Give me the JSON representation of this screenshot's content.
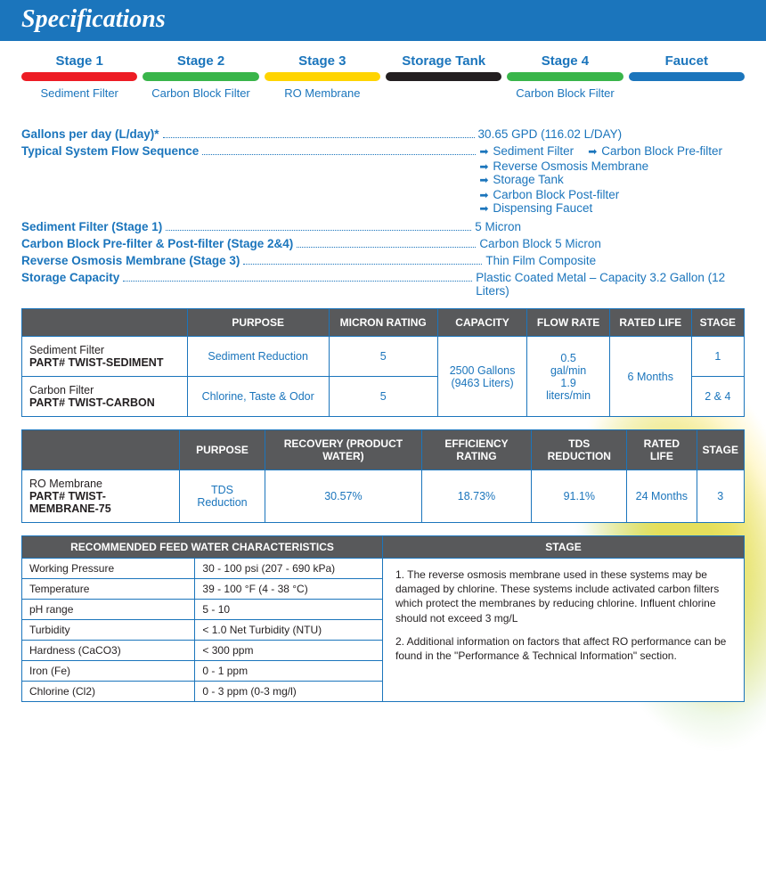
{
  "header": {
    "title": "Specifications"
  },
  "stages": [
    {
      "top": "Stage 1",
      "sub": "Sediment Filter",
      "color": "#ed1c24"
    },
    {
      "top": "Stage 2",
      "sub": "Carbon Block Filter",
      "color": "#39b54a"
    },
    {
      "top": "Stage 3",
      "sub": "RO  Membrane",
      "color": "#ffd400"
    },
    {
      "top": "Storage Tank",
      "sub": "",
      "color": "#231f20"
    },
    {
      "top": "Stage 4",
      "sub": "Carbon Block Filter",
      "color": "#39b54a"
    },
    {
      "top": "Faucet",
      "sub": "",
      "color": "#1b75bc"
    }
  ],
  "spec_rows": [
    {
      "label": "Gallons per day (L/day)*",
      "value": "30.65 GPD (116.02 L/DAY)",
      "dots_width": 350
    },
    {
      "label": "Typical System Flow Sequence",
      "value_flow": [
        [
          "Sediment Filter",
          "Carbon Block Pre-filter"
        ],
        [
          "Reverse Osmosis Membrane",
          "Storage Tank"
        ],
        [
          "Carbon Block Post-filter",
          "Dispensing Faucet"
        ]
      ],
      "dots_width": 307
    },
    {
      "label": "Sediment Filter (Stage 1)",
      "value": "5 Micron",
      "dots_width": 343
    },
    {
      "label": "Carbon Block Pre-filter & Post-filter (Stage 2&4)",
      "value": "Carbon Block 5 Micron",
      "dots_width": 201
    },
    {
      "label": "Reverse Osmosis Membrane (Stage 3)",
      "value": "Thin Film Composite",
      "dots_width": 268
    },
    {
      "label": "Storage Capacity",
      "value": "Plastic Coated Metal – Capacity 3.2 Gallon (12 Liters)",
      "dots_width": 392
    }
  ],
  "table1": {
    "headers": [
      "",
      "PURPOSE",
      "MICRON RATING",
      "CAPACITY",
      "FLOW RATE",
      "RATED LIFE",
      "STAGE"
    ],
    "rows": [
      {
        "name": "Sediment Filter",
        "part": "PART# TWIST-SEDIMENT",
        "purpose": "Sediment Reduction",
        "micron": "5",
        "stage": "1"
      },
      {
        "name": "Carbon Filter",
        "part": "PART# TWIST-CARBON",
        "purpose": "Chlorine, Taste & Odor",
        "micron": "5",
        "stage": "2 & 4"
      }
    ],
    "capacity_merged": "2500 Gallons (9463 Liters)",
    "flow_merged": "0.5 gal/min 1.9 liters/min",
    "life_merged": "6 Months"
  },
  "table2": {
    "headers": [
      "",
      "PURPOSE",
      "RECOVERY (PRODUCT WATER)",
      "EFFICIENCY RATING",
      "TDS REDUCTION",
      "RATED LIFE",
      "STAGE"
    ],
    "row": {
      "name": "RO Membrane",
      "part": "PART# TWIST-MEMBRANE-75",
      "purpose": "TDS Reduction",
      "recovery": "30.57%",
      "efficiency": "18.73%",
      "tds": "91.1%",
      "life": "24 Months",
      "stage": "3"
    }
  },
  "feed": {
    "title": "RECOMMENDED FEED WATER CHARACTERISTICS",
    "rows": [
      [
        "Working Pressure",
        "30 - 100 psi (207 - 690 kPa)"
      ],
      [
        "Temperature",
        "39 - 100 °F (4 - 38 °C)"
      ],
      [
        "pH range",
        "5 - 10"
      ],
      [
        "Turbidity",
        "< 1.0 Net Turbidity (NTU)"
      ],
      [
        "Hardness (CaCO3)",
        "< 300 ppm"
      ],
      [
        "Iron (Fe)",
        "0 - 1 ppm"
      ],
      [
        "Chlorine (Cl2)",
        "0 - 3 ppm (0-3 mg/l)"
      ]
    ]
  },
  "notes": {
    "title": "STAGE",
    "items": [
      "1. The reverse osmosis membrane used in these systems may be damaged by chlorine. These systems include activated carbon filters which protect the membranes by reducing chlorine. Influent chlorine should not exceed 3 mg/L",
      "2. Additional information on factors that affect RO performance can be found in the \"Performance & Technical Information\" section."
    ]
  },
  "colors": {
    "brand_blue": "#1b75bc",
    "header_bg": "#1b75bc",
    "table_header_bg": "#58595b",
    "text_dark": "#231f20"
  }
}
